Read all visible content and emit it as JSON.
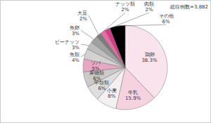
{
  "chart_data": {
    "type": "pie",
    "annotations": [
      "総症例数=3,882"
    ],
    "categories": [
      "鶏卵",
      "牛乳",
      "小麦",
      "甲殻類",
      "果物類",
      "ソバ",
      "魚類",
      "ピーナッツ",
      "魚卵",
      "大豆",
      "ナッツ類",
      "肉類",
      "その他"
    ],
    "values": [
      38.3,
      15.9,
      8,
      6,
      6,
      5,
      4,
      3,
      3,
      2,
      2,
      2,
      6
    ],
    "value_labels": [
      "38.3%",
      "15.9%",
      "8%",
      "6%",
      "6%",
      "5%",
      "4%",
      "3%",
      "3%",
      "2%",
      "2%",
      "2%",
      "6%"
    ],
    "colors": [
      "#f9e3ec",
      "#f6d2df",
      "#f4f0f2",
      "#dedede",
      "#cacaca",
      "#e8a7c4",
      "#d2d2d2",
      "#bdbdbd",
      "#a0a0a0",
      "#7c7c7c",
      "#e46fa3",
      "#d93a83",
      "#000000"
    ],
    "data_labels": true
  }
}
